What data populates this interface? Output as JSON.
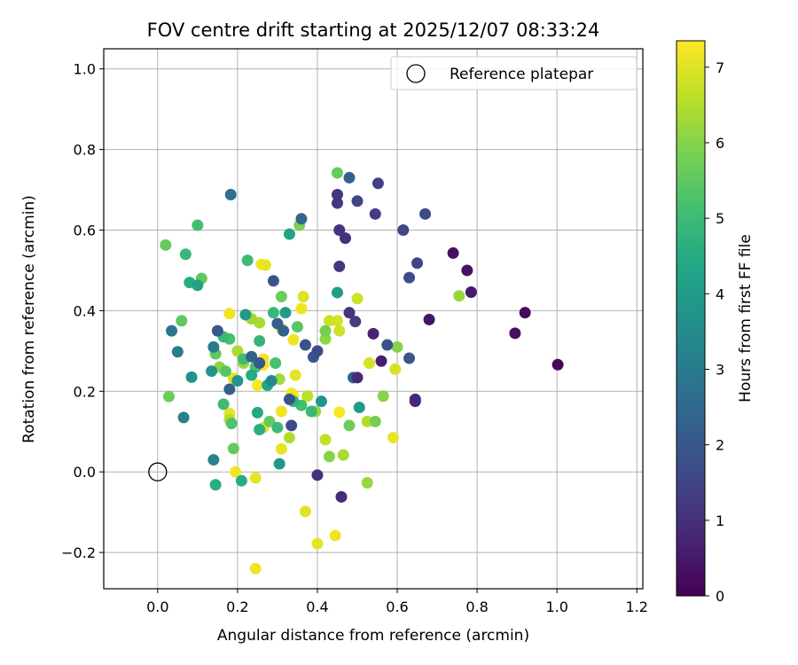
{
  "chart_data": {
    "type": "scatter",
    "title": "FOV centre drift starting at 2025/12/07 08:33:24",
    "xlabel": "Angular distance from reference (arcmin)",
    "ylabel": "Rotation from reference (arcmin)",
    "xlim": [
      -0.135,
      1.215
    ],
    "ylim": [
      -0.29,
      1.05
    ],
    "xticks": [
      0.0,
      0.2,
      0.4,
      0.6,
      0.8,
      1.0,
      1.2
    ],
    "xtick_labels": [
      "0.0",
      "0.2",
      "0.4",
      "0.6",
      "0.8",
      "1.0",
      "1.2"
    ],
    "yticks": [
      -0.2,
      0.0,
      0.2,
      0.4,
      0.6,
      0.8,
      1.0
    ],
    "ytick_labels": [
      "−0.2",
      "0.0",
      "0.2",
      "0.4",
      "0.6",
      "0.8",
      "1.0"
    ],
    "grid": true,
    "colormap": "viridis",
    "colorbar": {
      "label": "Hours from first FF file",
      "range": [
        0,
        7.35
      ],
      "ticks": [
        0,
        1,
        2,
        3,
        4,
        5,
        6,
        7
      ],
      "tick_labels": [
        "0",
        "1",
        "2",
        "3",
        "4",
        "5",
        "6",
        "7"
      ]
    },
    "legend": {
      "position": "top-right",
      "entries": [
        "Reference platepar"
      ]
    },
    "reference_point": {
      "x": 0.0,
      "y": 0.0,
      "label": "Reference platepar"
    },
    "points": [
      [
        1.002,
        0.266,
        0.1
      ],
      [
        0.92,
        0.395,
        0.2
      ],
      [
        0.895,
        0.344,
        0.3
      ],
      [
        0.74,
        0.543,
        0.3
      ],
      [
        0.775,
        0.5,
        0.4
      ],
      [
        0.785,
        0.446,
        0.5
      ],
      [
        0.68,
        0.378,
        0.4
      ],
      [
        0.645,
        0.175,
        0.8
      ],
      [
        0.645,
        0.18,
        0.9
      ],
      [
        0.56,
        0.275,
        0.6
      ],
      [
        0.54,
        0.343,
        0.7
      ],
      [
        0.46,
        -0.062,
        0.9
      ],
      [
        0.4,
        -0.008,
        1.0
      ],
      [
        0.5,
        0.234,
        0.9
      ],
      [
        0.45,
        0.688,
        1.1
      ],
      [
        0.45,
        0.667,
        1.2
      ],
      [
        0.455,
        0.6,
        1.1
      ],
      [
        0.47,
        0.58,
        1.0
      ],
      [
        0.455,
        0.51,
        1.2
      ],
      [
        0.48,
        0.395,
        1.1
      ],
      [
        0.495,
        0.373,
        1.3
      ],
      [
        0.552,
        0.716,
        1.4
      ],
      [
        0.545,
        0.64,
        1.3
      ],
      [
        0.5,
        0.672,
        1.5
      ],
      [
        0.67,
        0.64,
        1.6
      ],
      [
        0.65,
        0.518,
        1.5
      ],
      [
        0.615,
        0.6,
        1.6
      ],
      [
        0.63,
        0.482,
        1.7
      ],
      [
        0.575,
        0.315,
        1.8
      ],
      [
        0.63,
        0.282,
        2.0
      ],
      [
        0.49,
        0.234,
        2.3
      ],
      [
        0.4,
        0.3,
        1.7
      ],
      [
        0.39,
        0.285,
        1.9
      ],
      [
        0.37,
        0.315,
        1.8
      ],
      [
        0.33,
        0.18,
        1.9
      ],
      [
        0.335,
        0.115,
        1.7
      ],
      [
        0.29,
        0.474,
        1.9
      ],
      [
        0.3,
        0.368,
        2.2
      ],
      [
        0.315,
        0.35,
        2.3
      ],
      [
        0.235,
        0.286,
        2.3
      ],
      [
        0.255,
        0.27,
        2.0
      ],
      [
        0.15,
        0.35,
        2.0
      ],
      [
        0.18,
        0.205,
        2.2
      ],
      [
        0.48,
        0.73,
        2.3
      ],
      [
        0.36,
        0.628,
        2.4
      ],
      [
        0.183,
        0.688,
        2.7
      ],
      [
        0.035,
        0.35,
        2.9
      ],
      [
        0.05,
        0.298,
        3.1
      ],
      [
        0.14,
        0.31,
        3.0
      ],
      [
        0.065,
        0.135,
        3.2
      ],
      [
        0.14,
        0.03,
        3.3
      ],
      [
        0.085,
        0.235,
        3.8
      ],
      [
        0.135,
        0.25,
        3.8
      ],
      [
        0.285,
        0.226,
        3.4
      ],
      [
        0.305,
        0.02,
        3.9
      ],
      [
        0.2,
        0.226,
        3.8
      ],
      [
        0.22,
        0.39,
        3.9
      ],
      [
        0.32,
        0.395,
        4.0
      ],
      [
        0.33,
        0.59,
        4.3
      ],
      [
        0.45,
        0.445,
        4.1
      ],
      [
        0.41,
        0.175,
        3.8
      ],
      [
        0.505,
        0.16,
        4.0
      ],
      [
        0.08,
        0.47,
        4.5
      ],
      [
        0.1,
        0.463,
        4.2
      ],
      [
        0.21,
        -0.022,
        4.5
      ],
      [
        0.145,
        -0.032,
        4.6
      ],
      [
        0.235,
        0.24,
        4.5
      ],
      [
        0.255,
        0.325,
        4.8
      ],
      [
        0.25,
        0.147,
        4.4
      ],
      [
        0.255,
        0.105,
        4.6
      ],
      [
        0.275,
        0.215,
        4.3
      ],
      [
        0.3,
        0.11,
        5.0
      ],
      [
        0.34,
        0.175,
        4.8
      ],
      [
        0.385,
        0.15,
        4.9
      ],
      [
        0.36,
        0.165,
        5.1
      ],
      [
        0.215,
        0.28,
        5.0
      ],
      [
        0.165,
        0.168,
        5.0
      ],
      [
        0.18,
        0.33,
        5.2
      ],
      [
        0.165,
        0.335,
        4.9
      ],
      [
        0.245,
        0.26,
        5.1
      ],
      [
        0.29,
        0.395,
        4.9
      ],
      [
        0.225,
        0.525,
        5.0
      ],
      [
        0.07,
        0.54,
        4.9
      ],
      [
        0.1,
        0.612,
        5.1
      ],
      [
        0.11,
        0.48,
        5.5
      ],
      [
        0.17,
        0.25,
        5.4
      ],
      [
        0.02,
        0.563,
        5.6
      ],
      [
        0.028,
        0.187,
        5.7
      ],
      [
        0.06,
        0.375,
        5.5
      ],
      [
        0.145,
        0.293,
        5.5
      ],
      [
        0.185,
        0.12,
        5.3
      ],
      [
        0.19,
        0.058,
        5.6
      ],
      [
        0.28,
        0.125,
        5.6
      ],
      [
        0.295,
        0.27,
        5.2
      ],
      [
        0.35,
        0.36,
        5.4
      ],
      [
        0.31,
        0.435,
        5.7
      ],
      [
        0.355,
        0.612,
        5.9
      ],
      [
        0.45,
        0.742,
        5.6
      ],
      [
        0.42,
        0.35,
        5.8
      ],
      [
        0.48,
        0.115,
        5.7
      ],
      [
        0.545,
        0.125,
        5.8
      ],
      [
        0.565,
        0.188,
        6.0
      ],
      [
        0.6,
        0.31,
        6.0
      ],
      [
        0.755,
        0.437,
        6.2
      ],
      [
        0.42,
        0.33,
        6.1
      ],
      [
        0.395,
        0.15,
        6.2
      ],
      [
        0.43,
        0.038,
        6.0
      ],
      [
        0.465,
        0.042,
        6.4
      ],
      [
        0.525,
        -0.027,
        6.2
      ],
      [
        0.525,
        0.125,
        6.5
      ],
      [
        0.235,
        0.38,
        6.3
      ],
      [
        0.215,
        0.27,
        6.2
      ],
      [
        0.2,
        0.3,
        6.4
      ],
      [
        0.18,
        0.13,
        6.5
      ],
      [
        0.155,
        0.26,
        6.1
      ],
      [
        0.255,
        0.37,
        6.4
      ],
      [
        0.305,
        0.23,
        6.3
      ],
      [
        0.33,
        0.085,
        6.5
      ],
      [
        0.375,
        0.188,
        6.6
      ],
      [
        0.42,
        0.08,
        6.7
      ],
      [
        0.455,
        0.35,
        6.8
      ],
      [
        0.43,
        0.375,
        6.8
      ],
      [
        0.45,
        0.375,
        6.9
      ],
      [
        0.5,
        0.43,
        6.8
      ],
      [
        0.53,
        0.27,
        6.9
      ],
      [
        0.595,
        0.255,
        6.9
      ],
      [
        0.59,
        0.085,
        7.1
      ],
      [
        0.37,
        -0.098,
        7.0
      ],
      [
        0.4,
        -0.178,
        7.1
      ],
      [
        0.445,
        -0.158,
        7.2
      ],
      [
        0.245,
        -0.24,
        7.2
      ],
      [
        0.245,
        -0.015,
        7.1
      ],
      [
        0.195,
        0.0,
        7.2
      ],
      [
        0.18,
        0.145,
        7.1
      ],
      [
        0.19,
        0.232,
        7.0
      ],
      [
        0.225,
        0.388,
        7.1
      ],
      [
        0.25,
        0.215,
        7.3
      ],
      [
        0.265,
        0.11,
        7.0
      ],
      [
        0.265,
        0.28,
        7.2
      ],
      [
        0.27,
        0.513,
        7.1
      ],
      [
        0.26,
        0.515,
        7.2
      ],
      [
        0.265,
        0.265,
        7.3
      ],
      [
        0.31,
        0.15,
        7.2
      ],
      [
        0.31,
        0.057,
        7.1
      ],
      [
        0.31,
        0.355,
        7.3
      ],
      [
        0.34,
        0.328,
        7.2
      ],
      [
        0.34,
        0.19,
        7.3
      ],
      [
        0.345,
        0.24,
        7.1
      ],
      [
        0.365,
        0.435,
        7.0
      ],
      [
        0.36,
        0.405,
        7.2
      ],
      [
        0.335,
        0.195,
        7.2
      ],
      [
        0.455,
        0.148,
        7.3
      ],
      [
        0.18,
        0.393,
        7.2
      ]
    ]
  }
}
